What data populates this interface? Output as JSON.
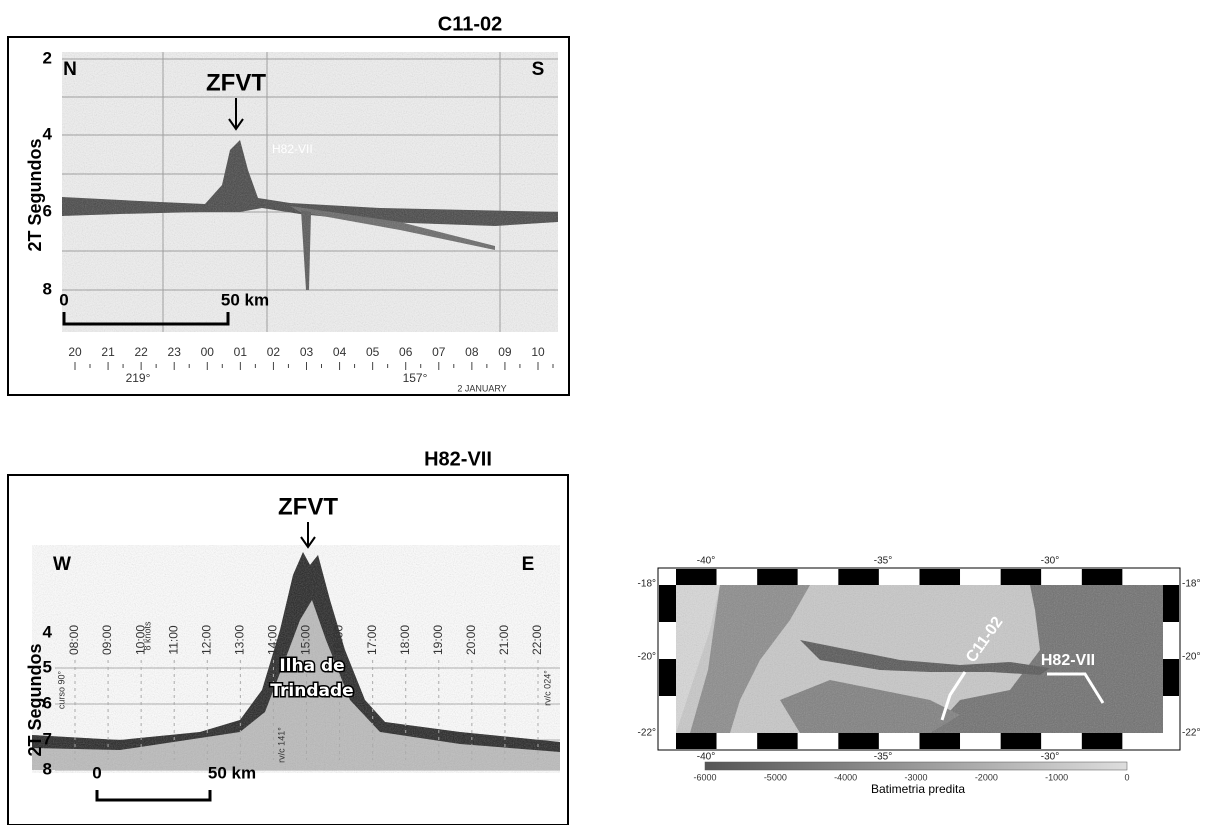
{
  "panel_top": {
    "title": "C11-02",
    "y_axis_label": "2T Segundos",
    "y_ticks": [
      "2",
      "4",
      "6",
      "8"
    ],
    "left_dir": "N",
    "right_dir": "S",
    "marker": "ZFVT",
    "track_label": "H82-VII",
    "scale_start": "0",
    "scale_end": "50 km",
    "hours": [
      "20",
      "21",
      "22",
      "23",
      "00",
      "01",
      "02",
      "03",
      "04",
      "05",
      "06",
      "07",
      "08",
      "09",
      "10"
    ],
    "headings": [
      "219°",
      "157°"
    ],
    "date": "2 JANUARY"
  },
  "panel_bottom": {
    "title": "H82-VII",
    "y_axis_label": "2T Segundos",
    "y_ticks": [
      "4",
      "5",
      "6",
      "7",
      "8"
    ],
    "left_dir": "W",
    "right_dir": "E",
    "marker": "ZFVT",
    "island": [
      "Ilha de",
      "Trindade"
    ],
    "notes": [
      "curso 90°",
      "rv/c 024°",
      "rv/c 141°",
      "8 knots"
    ],
    "scale_start": "0",
    "scale_end": "50 km",
    "hours": [
      "08:00",
      "09:00",
      "10:00",
      "11:00",
      "12:00",
      "13:00",
      "14:00",
      "15:00",
      "16:00",
      "17:00",
      "18:00",
      "19:00",
      "20:00",
      "21:00",
      "22:00"
    ]
  },
  "map": {
    "lon_labels": [
      "-40°",
      "-35°",
      "-30°"
    ],
    "lat_labels": [
      "-18°",
      "-20°",
      "-22°"
    ],
    "profiles": [
      "C11-02",
      "H82-VII"
    ],
    "colorbar_ticks": [
      "-6000",
      "-5000",
      "-4000",
      "-3000",
      "-2000",
      "-1000",
      "0"
    ],
    "colorbar_label": "Batimetria predita"
  }
}
